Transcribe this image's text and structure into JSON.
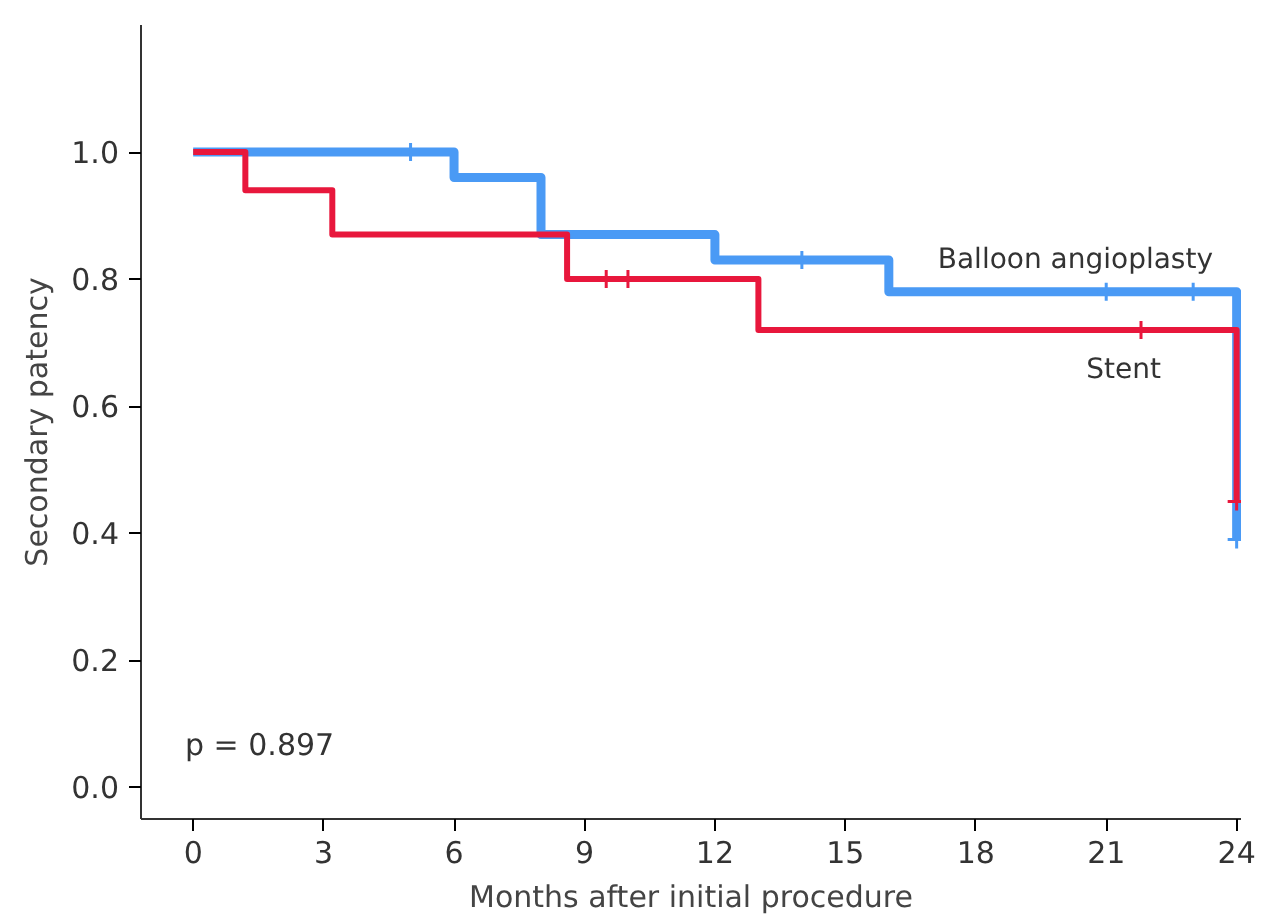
{
  "chart_data": {
    "type": "step",
    "xlabel": "Months after initial procedure",
    "ylabel": "Secondary patency",
    "xlim": [
      -1.2,
      24.1
    ],
    "ylim": [
      -0.05,
      1.2
    ],
    "xticks": [
      0,
      3,
      6,
      9,
      12,
      15,
      18,
      21,
      24
    ],
    "yticks": [
      {
        "value": 0,
        "label": "0.0"
      },
      {
        "value": 0.2,
        "label": "0.2"
      },
      {
        "value": 0.4,
        "label": "0.4"
      },
      {
        "value": 0.6,
        "label": "0.6"
      },
      {
        "value": 0.8,
        "label": "0.8"
      },
      {
        "value": 1,
        "label": "1.0"
      }
    ],
    "grid": false,
    "annotations": [
      "p = 0.897"
    ],
    "series": [
      {
        "name": "Balloon angioplasty",
        "color": "#4a9af5",
        "x": [
          0,
          6,
          8,
          12,
          16,
          24
        ],
        "values": [
          1.0,
          0.96,
          0.87,
          0.83,
          0.78,
          0.39
        ]
      },
      {
        "name": "Stent",
        "color": "#e8173c",
        "x": [
          0,
          1.2,
          3.2,
          8.6,
          13,
          24
        ],
        "values": [
          1.0,
          0.94,
          0.87,
          0.8,
          0.72,
          0.45
        ]
      },
      {
        "type": "scatter",
        "marker": "cross",
        "color": "#4a9af5",
        "x": [
          5,
          14,
          21,
          23,
          24
        ],
        "values": [
          1.0,
          0.83,
          0.78,
          0.78,
          0.39
        ]
      },
      {
        "type": "scatter",
        "marker": "cross",
        "color": "#e8173c",
        "x": [
          9.5,
          10,
          21.8,
          24
        ],
        "values": [
          0.8,
          0.8,
          0.72,
          0.45
        ]
      }
    ]
  }
}
